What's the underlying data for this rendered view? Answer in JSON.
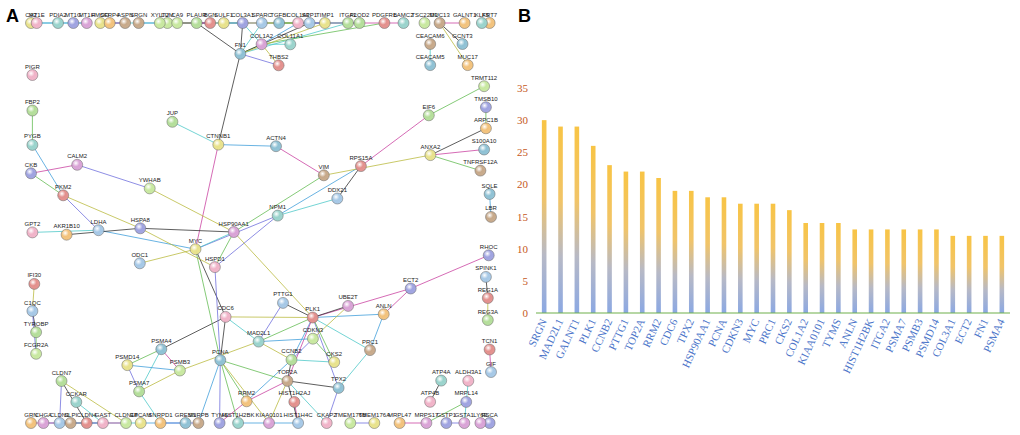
{
  "panel_labels": [
    "A",
    "B"
  ],
  "network": {
    "nodes": [
      "SPINK1",
      "REG1A",
      "REG3A",
      "TMEM176B",
      "TMEM176A",
      "CEACAM5",
      "CEACAM6",
      "KRT7",
      "PSCA",
      "LY6E",
      "PIGR",
      "KLF5",
      "GIF",
      "TCN1",
      "FBP2",
      "TSC22D3",
      "CA2",
      "GCNT3",
      "MUC13",
      "MUC17",
      "GSTP1",
      "GSTA1",
      "ALDH3A1",
      "LAMC2",
      "SPP1",
      "THBS2",
      "ITGA2",
      "LUM",
      "FMOD",
      "TGFBI",
      "ASPN",
      "SFRP4",
      "COL3A1",
      "COL1A2",
      "COL1A1",
      "COL11A1",
      "SPARC",
      "BGN",
      "PLOD2",
      "XYLT2",
      "SULF1",
      "SQLE",
      "LBR",
      "MRPL47",
      "MRPL14",
      "MRPS17",
      "ATP4B",
      "ATP4A",
      "CLDN1",
      "CLDN4",
      "CLDN7",
      "CLDN18",
      "EPCAM",
      "GREM1",
      "SLPI",
      "GRN",
      "TMSB10",
      "CHGA",
      "GAST",
      "CCKAR",
      "C1QC",
      "IFI30",
      "TYROBP",
      "FCGR2A",
      "ANXA2",
      "S100A10",
      "TNFRSF12A",
      "ARPC1B",
      "MT1G",
      "MT1H",
      "MT1E",
      "PDIA2",
      "ODC1",
      "PDGFRB",
      "PLAUR",
      "CA9",
      "TIMP1",
      "FN1",
      "SRGN",
      "GALNT1",
      "CKB",
      "CALM2",
      "GPT2",
      "PYGB",
      "LDHA",
      "PKM2",
      "JUP",
      "YWHAB",
      "CTNNB1",
      "ACTN4",
      "VIM",
      "AKR1B10",
      "HSPA8",
      "HSP90AA1",
      "HSPD1",
      "NPM1",
      "DDX21",
      "RPS15A",
      "EIF6",
      "TRMT112",
      "MYC",
      "PCNA",
      "TOP2A",
      "RRM2",
      "TYMS",
      "KIAA0101",
      "CDC6",
      "MAD2L1",
      "PTTG1",
      "PLK1",
      "CCNB2",
      "CDKN3",
      "CKS2",
      "TPX2",
      "PRC1",
      "ANLN",
      "ECT2",
      "UBE2T",
      "CKAP2",
      "HIST1H2BK",
      "HIST1H4C",
      "HIST1H2AJ",
      "PSMA7",
      "PSMB3",
      "PSMD14",
      "PSMA4",
      "SNRPB",
      "SNRPD1",
      "RHOC"
    ],
    "edges": [
      [
        "PLK1",
        "CCNB2"
      ],
      [
        "PLK1",
        "TOP2A"
      ],
      [
        "PLK1",
        "MAD2L1"
      ],
      [
        "PLK1",
        "PTTG1"
      ],
      [
        "PLK1",
        "CDC6"
      ],
      [
        "PLK1",
        "TPX2"
      ],
      [
        "PLK1",
        "PRC1"
      ],
      [
        "PLK1",
        "ANLN"
      ],
      [
        "PLK1",
        "ECT2"
      ],
      [
        "PLK1",
        "CKS2"
      ],
      [
        "CCNB2",
        "TOP2A"
      ],
      [
        "CCNB2",
        "MAD2L1"
      ],
      [
        "CCNB2",
        "CDKN3"
      ],
      [
        "CCNB2",
        "CKS2"
      ],
      [
        "CCNB2",
        "RRM2"
      ],
      [
        "TOP2A",
        "RRM2"
      ],
      [
        "TOP2A",
        "PCNA"
      ],
      [
        "TOP2A",
        "TPX2"
      ],
      [
        "TOP2A",
        "KIAA0101"
      ],
      [
        "MAD2L1",
        "PTTG1"
      ],
      [
        "MAD2L1",
        "CDC6"
      ],
      [
        "MAD2L1",
        "CDKN3"
      ],
      [
        "RRM2",
        "TYMS"
      ],
      [
        "RRM2",
        "PCNA"
      ],
      [
        "CDC6",
        "PCNA"
      ],
      [
        "PCNA",
        "KIAA0101"
      ],
      [
        "PCNA",
        "TYMS"
      ],
      [
        "TPX2",
        "PRC1"
      ],
      [
        "PRC1",
        "ANLN"
      ],
      [
        "ANLN",
        "ECT2"
      ],
      [
        "CKS2",
        "CDKN3"
      ],
      [
        "UBE2T",
        "PLK1"
      ],
      [
        "UBE2T",
        "CDKN3"
      ],
      [
        "CKAP2",
        "TPX2"
      ],
      [
        "CKAP2",
        "TOP2A"
      ],
      [
        "HIST1H2BK",
        "HIST1H4C"
      ],
      [
        "HIST1H4C",
        "HIST1H2AJ"
      ],
      [
        "HIST1H2BK",
        "PCNA"
      ],
      [
        "HIST1H4C",
        "TOP2A"
      ],
      [
        "PSMA7",
        "PSMB3"
      ],
      [
        "PSMA7",
        "PSMD14"
      ],
      [
        "PSMA7",
        "PSMA4"
      ],
      [
        "PSMB3",
        "PSMD14"
      ],
      [
        "PSMB3",
        "PSMA4"
      ],
      [
        "PSMD14",
        "PSMA4"
      ],
      [
        "PSMA4",
        "CDC6"
      ],
      [
        "PSMB3",
        "MAD2L1"
      ],
      [
        "SNRPB",
        "SNRPD1"
      ],
      [
        "SNRPD1",
        "PSMA7"
      ],
      [
        "SNRPB",
        "PCNA"
      ],
      [
        "RHOC",
        "ECT2"
      ],
      [
        "MYC",
        "PCNA"
      ],
      [
        "MYC",
        "CDC6"
      ],
      [
        "MYC",
        "ODC1"
      ],
      [
        "MYC",
        "NPM1"
      ],
      [
        "MYC",
        "HSP90AA1"
      ],
      [
        "MYC",
        "LDHA"
      ],
      [
        "MYC",
        "CTNNB1"
      ],
      [
        "HSP90AA1",
        "HSPD1"
      ],
      [
        "HSP90AA1",
        "HSPA8"
      ],
      [
        "HSPD1",
        "HSPA8"
      ],
      [
        "HSPD1",
        "NPM1"
      ],
      [
        "NPM1",
        "DDX21"
      ],
      [
        "NPM1",
        "RPS15A"
      ],
      [
        "RPS15A",
        "EIF6"
      ],
      [
        "EIF6",
        "TRMT112"
      ],
      [
        "DDX21",
        "RPS15A"
      ],
      [
        "HSPA8",
        "PKM2"
      ],
      [
        "PKM2",
        "LDHA"
      ],
      [
        "LDHA",
        "GPT2"
      ],
      [
        "PKM2",
        "PYGB"
      ],
      [
        "CKB",
        "CALM2"
      ],
      [
        "CKB",
        "PKM2"
      ],
      [
        "AKR1B10",
        "HSPA8"
      ],
      [
        "YWHAB",
        "HSP90AA1"
      ],
      [
        "YWHAB",
        "CALM2"
      ],
      [
        "JUP",
        "CTNNB1"
      ],
      [
        "CTNNB1",
        "ACTN4"
      ],
      [
        "ACTN4",
        "VIM"
      ],
      [
        "VIM",
        "HSP90AA1"
      ],
      [
        "CTNNB1",
        "FN1"
      ],
      [
        "HSP90AA1",
        "PLK1"
      ],
      [
        "HSPD1",
        "PCNA"
      ],
      [
        "COL1A2",
        "COL3A1"
      ],
      [
        "COL1A2",
        "COL1A1"
      ],
      [
        "COL1A1",
        "COL3A1"
      ],
      [
        "COL1A2",
        "FN1"
      ],
      [
        "COL3A1",
        "FN1"
      ],
      [
        "COL1A1",
        "SPARC"
      ],
      [
        "COL3A1",
        "LUM"
      ],
      [
        "LUM",
        "FMOD"
      ],
      [
        "FMOD",
        "ASPN"
      ],
      [
        "ASPN",
        "SFRP4"
      ],
      [
        "BGN",
        "COL1A1"
      ],
      [
        "BGN",
        "LUM"
      ],
      [
        "THBS2",
        "COL1A2"
      ],
      [
        "THBS2",
        "FN1"
      ],
      [
        "ITGA2",
        "FN1"
      ],
      [
        "ITGA2",
        "COL1A1"
      ],
      [
        "ITGA2",
        "LAMC2"
      ],
      [
        "TGFBI",
        "COL1A1"
      ],
      [
        "SPP1",
        "FN1"
      ],
      [
        "SPP1",
        "ITGA2"
      ],
      [
        "PLOD2",
        "COL1A1"
      ],
      [
        "COL11A1",
        "COL1A2"
      ],
      [
        "SULF1",
        "COL3A1"
      ],
      [
        "XYLT2",
        "BGN"
      ],
      [
        "PDGFRB",
        "COL1A2"
      ],
      [
        "PLAUR",
        "FN1"
      ],
      [
        "TIMP1",
        "FN1"
      ],
      [
        "TIMP1",
        "SPP1"
      ],
      [
        "SPARC",
        "FN1"
      ],
      [
        "SRGN",
        "PLAUR"
      ],
      [
        "GALNT1",
        "MUC13"
      ],
      [
        "CLDN1",
        "CLDN4"
      ],
      [
        "CLDN4",
        "CLDN7"
      ],
      [
        "CLDN7",
        "CLDN18"
      ],
      [
        "CLDN1",
        "CLDN7"
      ],
      [
        "CLDN4",
        "EPCAM"
      ],
      [
        "EPCAM",
        "GREM1"
      ],
      [
        "CLDN1",
        "CLDN18"
      ],
      [
        "FCGR2A",
        "TYROBP"
      ],
      [
        "TYROBP",
        "C1QC"
      ],
      [
        "C1QC",
        "IFI30"
      ],
      [
        "FCGR2A",
        "C1QC"
      ],
      [
        "CCKAR",
        "GAST"
      ],
      [
        "GAST",
        "CHGA"
      ],
      [
        "ANXA2",
        "S100A10"
      ],
      [
        "ANXA2",
        "TNFRSF12A"
      ],
      [
        "ARPC1B",
        "ANXA2"
      ],
      [
        "ANXA2",
        "VIM"
      ],
      [
        "MT1G",
        "MT1H"
      ],
      [
        "MT1H",
        "MT1E"
      ],
      [
        "MT1G",
        "MT1E"
      ],
      [
        "SLPI",
        "GRN"
      ],
      [
        "TMSB10",
        "ARPC1B"
      ],
      [
        "SPINK1",
        "REG1A"
      ],
      [
        "REG1A",
        "REG3A"
      ],
      [
        "TMEM176A",
        "TMEM176B"
      ],
      [
        "CEACAM5",
        "CEACAM6"
      ],
      [
        "PSCA",
        "LY6E"
      ],
      [
        "GIF",
        "TCN1"
      ],
      [
        "FBP2",
        "PYGB"
      ],
      [
        "GCNT3",
        "MUC13"
      ],
      [
        "MUC13",
        "MUC17"
      ],
      [
        "GSTP1",
        "GSTA1"
      ],
      [
        "GSTA1",
        "ALDH3A1"
      ],
      [
        "SQLE",
        "LBR"
      ],
      [
        "MRPL47",
        "MRPS17"
      ],
      [
        "MRPL14",
        "MRPS17"
      ],
      [
        "ATP4A",
        "ATP4B"
      ],
      [
        "CA9",
        "PLAUR"
      ]
    ]
  },
  "chart_data": {
    "type": "bar",
    "categories": [
      "SRGN",
      "MAD2L1",
      "GALNT1",
      "PLK1",
      "CCNB2",
      "PTTG1",
      "TOP2A",
      "RRM2",
      "CDC6",
      "TPX2",
      "HSP90AA1",
      "PCNA",
      "CDKN3",
      "MYC",
      "PRC1",
      "CKS2",
      "COL1A2",
      "KIAA0101",
      "TYMS",
      "ANLN",
      "HIST1H2BK",
      "ITGA2",
      "PSMA7",
      "PSMB3",
      "PSMD14",
      "COL3A1",
      "ECT2",
      "FN1",
      "PSMA4"
    ],
    "values": [
      30,
      29,
      29,
      26,
      23,
      22,
      22,
      21,
      19,
      19,
      18,
      18,
      17,
      17,
      17,
      16,
      14,
      14,
      14,
      13,
      13,
      13,
      13,
      13,
      13,
      12,
      12,
      12,
      12
    ],
    "ylim": [
      0,
      35
    ],
    "yticks": [
      0,
      5,
      10,
      15,
      20,
      25,
      30,
      35
    ],
    "grid": false
  }
}
